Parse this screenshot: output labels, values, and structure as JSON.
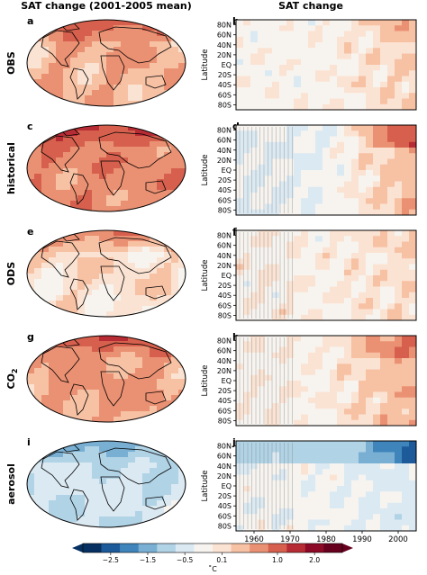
{
  "chart_data": {
    "type": "heatmap",
    "col_titles": [
      "SAT change (2001-2005 mean)",
      "SAT change"
    ],
    "map_panels": [
      {
        "letter": "a",
        "row_label": "OBS",
        "level": 0.55
      },
      {
        "letter": "c",
        "row_label": "historical",
        "level": 0.85
      },
      {
        "letter": "e",
        "row_label": "ODS",
        "level": 0.2
      },
      {
        "letter": "g",
        "row_label": "CO",
        "row_sub": "2",
        "level": 0.65
      },
      {
        "letter": "i",
        "row_label": "aerosol",
        "level": -0.45
      }
    ],
    "hov_panels": [
      {
        "letter": "b",
        "early": 0.0,
        "late": 0.35,
        "north_boost": 0.2
      },
      {
        "letter": "d",
        "early": -0.2,
        "late": 0.55,
        "north_boost": 0.9
      },
      {
        "letter": "f",
        "early": 0.05,
        "late": 0.25,
        "north_boost": 0.1
      },
      {
        "letter": "h",
        "early": 0.05,
        "late": 0.55,
        "north_boost": 0.6
      },
      {
        "letter": "j",
        "early": -0.1,
        "late": -0.35,
        "north_boost": -1.2
      }
    ],
    "ylabel": "Latitude",
    "lat_ticks": [
      "80N",
      "60N",
      "40N",
      "20N",
      "EQ",
      "20S",
      "40S",
      "60S",
      "80S"
    ],
    "lat_values": [
      80,
      60,
      40,
      20,
      0,
      -20,
      -40,
      -60,
      -80
    ],
    "xlabel": "Year",
    "x_ticks": [
      1960,
      1970,
      1980,
      1990,
      2000
    ],
    "x_range": [
      1955,
      2005
    ],
    "colorbar": {
      "unit": "˚C",
      "tick_labels": [
        "−2.5",
        "−1.5",
        "−0.5",
        "0.1",
        "1.0",
        "2.0"
      ],
      "tick_values": [
        -2.5,
        -1.5,
        -0.5,
        0.1,
        1.0,
        2.0
      ],
      "levels": [
        -3.0,
        -2.5,
        -2.0,
        -1.5,
        -1.0,
        -0.5,
        -0.2,
        0.1,
        0.3,
        0.6,
        1.0,
        1.5,
        2.0,
        2.5
      ],
      "colors": [
        "#053061",
        "#1d5a9a",
        "#3f85bb",
        "#78afd3",
        "#b1d3e6",
        "#dbe9f2",
        "#f7f4f0",
        "#fbe3d3",
        "#f7c1a4",
        "#eb9173",
        "#d6604d",
        "#b72c34",
        "#8c0a25",
        "#67001f"
      ]
    }
  }
}
